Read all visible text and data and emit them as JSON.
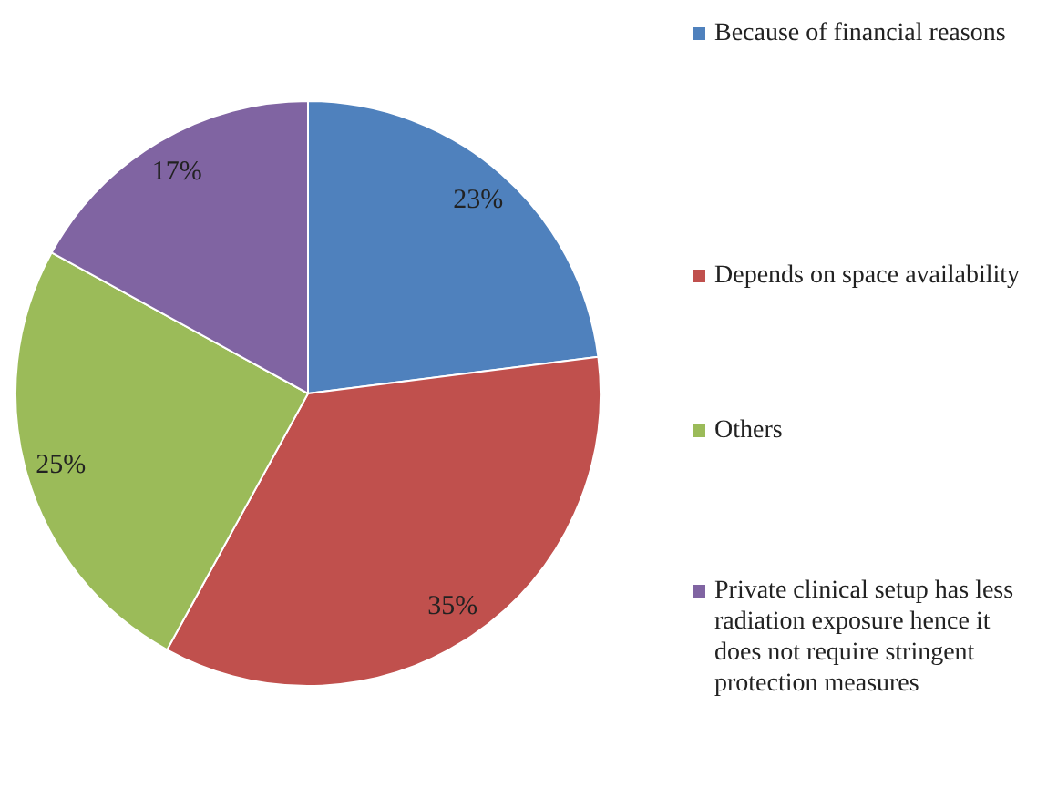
{
  "chart_data": {
    "type": "pie",
    "categories": [
      "Because of financial reasons",
      "Depends on space availability",
      "Others",
      "Private clinical  setup has less radiation exposure hence it does not require stringent protection measures"
    ],
    "values": [
      23,
      35,
      25,
      17
    ],
    "colors": [
      "#4f81bd",
      "#c0504d",
      "#9bbb59",
      "#8064a2"
    ],
    "value_labels": [
      "23%",
      "35%",
      "25%",
      "17%"
    ],
    "legend": "right"
  }
}
